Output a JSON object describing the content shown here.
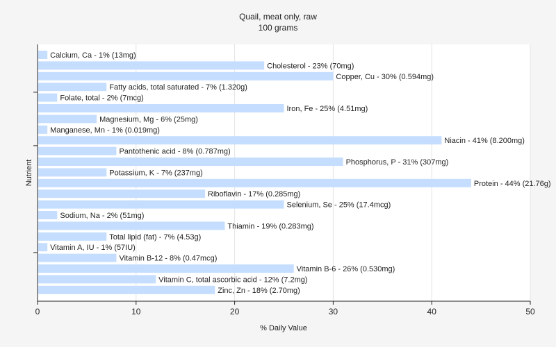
{
  "chart_data": {
    "type": "bar",
    "orientation": "horizontal",
    "title": "Quail, meat only, raw",
    "subtitle": "100 grams",
    "xlabel": "% Daily Value",
    "ylabel": "Nutrient",
    "xlim": [
      0,
      50
    ],
    "xticks": [
      0,
      10,
      20,
      30,
      40,
      50
    ],
    "grid": "vertical",
    "bar_color": "#c5deff",
    "categories": [
      "Calcium, Ca",
      "Cholesterol",
      "Copper, Cu",
      "Fatty acids, total saturated",
      "Folate, total",
      "Iron, Fe",
      "Magnesium, Mg",
      "Manganese, Mn",
      "Niacin",
      "Pantothenic acid",
      "Phosphorus, P",
      "Potassium, K",
      "Protein",
      "Riboflavin",
      "Selenium, Se",
      "Sodium, Na",
      "Thiamin",
      "Total lipid (fat)",
      "Vitamin A, IU",
      "Vitamin B-12",
      "Vitamin B-6",
      "Vitamin C, total ascorbic acid",
      "Zinc, Zn"
    ],
    "values": [
      1,
      23,
      30,
      7,
      2,
      25,
      6,
      1,
      41,
      8,
      31,
      7,
      44,
      17,
      25,
      2,
      19,
      7,
      1,
      8,
      26,
      12,
      18
    ],
    "labels": [
      "Calcium, Ca - 1% (13mg)",
      "Cholesterol - 23% (70mg)",
      "Copper, Cu - 30% (0.594mg)",
      "Fatty acids, total saturated - 7% (1.320g)",
      "Folate, total - 2% (7mcg)",
      "Iron, Fe - 25% (4.51mg)",
      "Magnesium, Mg - 6% (25mg)",
      "Manganese, Mn - 1% (0.019mg)",
      "Niacin - 41% (8.200mg)",
      "Pantothenic acid - 8% (0.787mg)",
      "Phosphorus, P - 31% (307mg)",
      "Potassium, K - 7% (237mg)",
      "Protein - 44% (21.76g)",
      "Riboflavin - 17% (0.285mg)",
      "Selenium, Se - 25% (17.4mcg)",
      "Sodium, Na - 2% (51mg)",
      "Thiamin - 19% (0.283mg)",
      "Total lipid (fat) - 7% (4.53g)",
      "Vitamin A, IU - 1% (57IU)",
      "Vitamin B-12 - 8% (0.47mcg)",
      "Vitamin B-6 - 26% (0.530mg)",
      "Vitamin C, total ascorbic acid - 12% (7.2mg)",
      "Zinc, Zn - 18% (2.70mg)"
    ]
  }
}
